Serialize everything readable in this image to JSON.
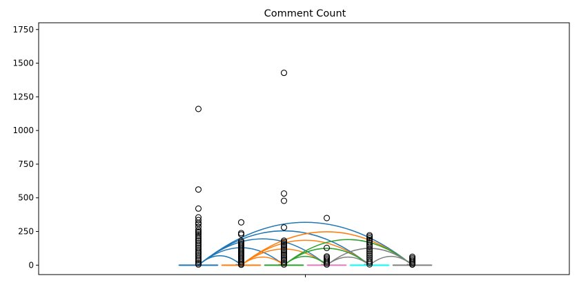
{
  "chart_data": {
    "type": "box",
    "title": "Comment Count",
    "xlabel": "",
    "ylabel": "",
    "ylim": [
      -70,
      1800
    ],
    "yticks": [
      0,
      250,
      500,
      750,
      1000,
      1250,
      1500,
      1750
    ],
    "ytick_labels": [
      "0",
      "250",
      "500",
      "750",
      "1000",
      "1250",
      "1500",
      "1750"
    ],
    "grid": false,
    "legend": "none",
    "boxes": [
      {
        "color": "#1f77b4",
        "median": 0,
        "q1": 0,
        "q3": 0,
        "outliers": [
          1160,
          562,
          420,
          355,
          335,
          315,
          305,
          285,
          262,
          250,
          240,
          228,
          215,
          202,
          190,
          178,
          165,
          152,
          140,
          128,
          115,
          102,
          90,
          78,
          65,
          52,
          40,
          28,
          15,
          5
        ]
      },
      {
        "color": "#ff7f0e",
        "median": 0,
        "q1": 0,
        "q3": 0,
        "outliers": [
          318,
          238,
          228,
          180,
          170,
          160,
          150,
          140,
          130,
          120,
          110,
          100,
          90,
          80,
          70,
          60,
          50,
          40,
          30,
          20,
          10,
          3
        ]
      },
      {
        "color": "#2ca02c",
        "median": 0,
        "q1": 0,
        "q3": 0,
        "outliers": [
          1428,
          532,
          478,
          280,
          182,
          172,
          160,
          148,
          136,
          124,
          112,
          100,
          88,
          76,
          64,
          52,
          40,
          28,
          16,
          5
        ]
      },
      {
        "color": "#e377c2",
        "median": 0,
        "q1": 0,
        "q3": 0,
        "outliers": [
          350,
          128,
          65,
          55,
          45,
          35,
          25,
          15,
          5
        ]
      },
      {
        "color": "#00ffff",
        "median": 0,
        "q1": 0,
        "q3": 0,
        "outliers": [
          222,
          212,
          200,
          188,
          176,
          164,
          150,
          136,
          120,
          105,
          90,
          75,
          60,
          45,
          30,
          18,
          6
        ]
      },
      {
        "color": "#7f7f7f",
        "median": 0,
        "q1": 0,
        "q3": 0,
        "outliers": [
          62,
          52,
          42,
          32,
          22,
          12,
          4
        ]
      }
    ],
    "arcs": [
      {
        "from": 0,
        "to": 1,
        "height": 70,
        "color": "#1f77b4"
      },
      {
        "from": 0,
        "to": 2,
        "height": 130,
        "color": "#1f77b4"
      },
      {
        "from": 0,
        "to": 3,
        "height": 195,
        "color": "#1f77b4"
      },
      {
        "from": 0,
        "to": 4,
        "height": 255,
        "color": "#1f77b4"
      },
      {
        "from": 0,
        "to": 5,
        "height": 318,
        "color": "#1f77b4"
      },
      {
        "from": 1,
        "to": 2,
        "height": 60,
        "color": "#ff7f0e"
      },
      {
        "from": 1,
        "to": 3,
        "height": 120,
        "color": "#ff7f0e"
      },
      {
        "from": 1,
        "to": 4,
        "height": 185,
        "color": "#ff7f0e"
      },
      {
        "from": 1,
        "to": 5,
        "height": 248,
        "color": "#ff7f0e"
      },
      {
        "from": 2,
        "to": 3,
        "height": 65,
        "color": "#2ca02c"
      },
      {
        "from": 2,
        "to": 4,
        "height": 125,
        "color": "#2ca02c"
      },
      {
        "from": 2,
        "to": 5,
        "height": 190,
        "color": "#2ca02c"
      },
      {
        "from": 3,
        "to": 4,
        "height": 60,
        "color": "#7f7f7f"
      },
      {
        "from": 3,
        "to": 5,
        "height": 125,
        "color": "#7f7f7f"
      },
      {
        "from": 4,
        "to": 5,
        "height": 65,
        "color": "#7f7f7f"
      }
    ]
  }
}
